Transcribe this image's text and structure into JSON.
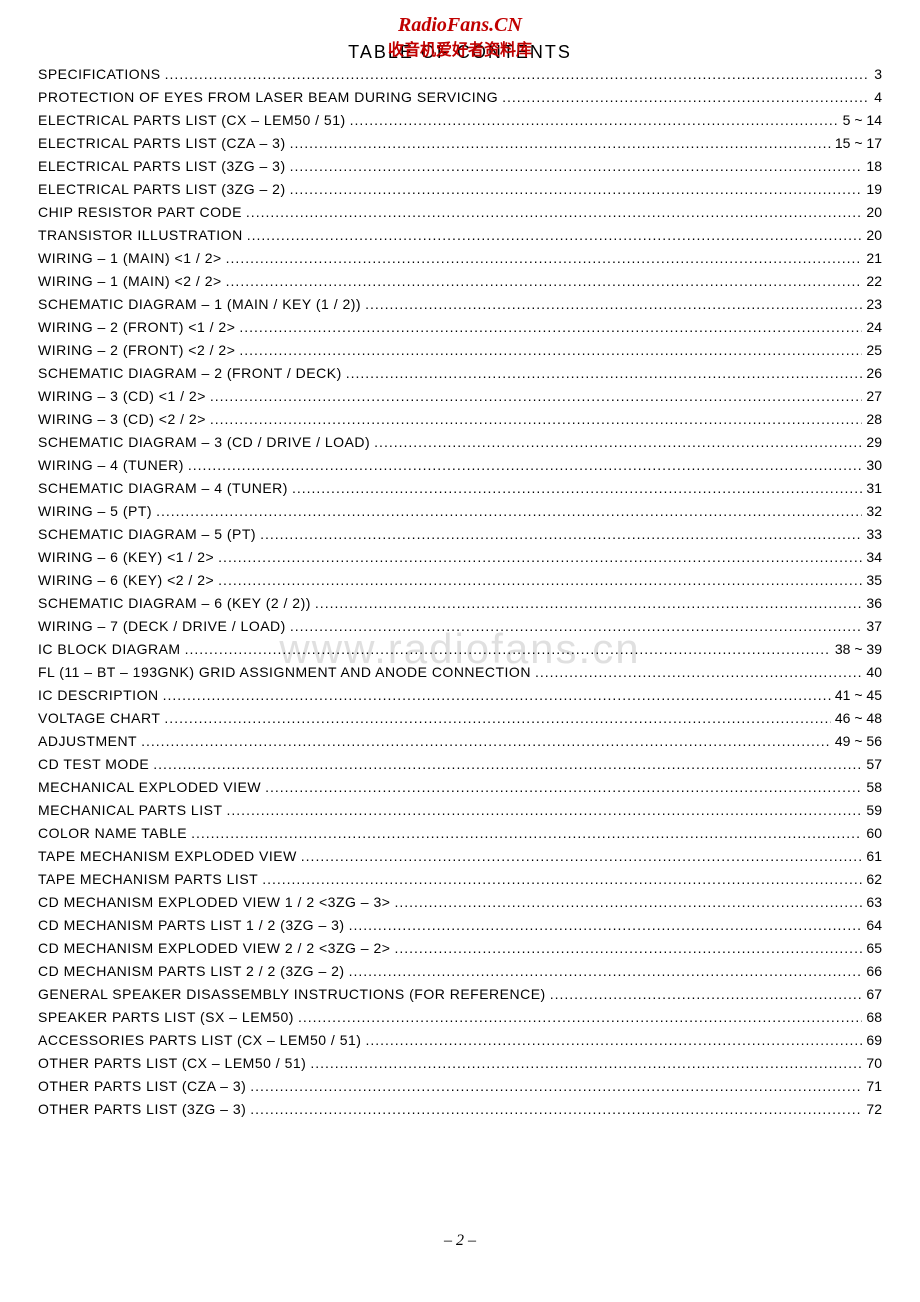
{
  "watermark_top": "RadioFans.CN",
  "watermark_sub": "收音机爱好者资料库",
  "title": "TABLE  OF  CONTENTS",
  "watermark_mid": "www.radiofans.cn",
  "page_number": "– 2 –",
  "toc": [
    {
      "title": "SPECIFICATIONS",
      "page": "3"
    },
    {
      "title": "PROTECTION  OF  EYES  FROM  LASER  BEAM  DURING  SERVICING",
      "page": "4"
    },
    {
      "title": "ELECTRICAL  PARTS  LIST  (CX – LEM50 / 51)",
      "page": "5 ~ 14"
    },
    {
      "title": "ELECTRICAL  PARTS  LIST  (CZA – 3)",
      "page": "15 ~ 17"
    },
    {
      "title": "ELECTRICAL  PARTS  LIST  (3ZG – 3)",
      "page": "18"
    },
    {
      "title": "ELECTRICAL  PARTS  LIST  (3ZG – 2)",
      "page": "19"
    },
    {
      "title": "CHIP  RESISTOR  PART  CODE",
      "page": "20"
    },
    {
      "title": "TRANSISTOR  ILLUSTRATION",
      "page": "20"
    },
    {
      "title": "WIRING – 1  (MAIN)  <1 / 2>",
      "page": "21"
    },
    {
      "title": "WIRING – 1  (MAIN)  <2 / 2>",
      "page": "22"
    },
    {
      "title": "SCHEMATIC  DIAGRAM – 1  (MAIN / KEY  (1 / 2))",
      "page": "23"
    },
    {
      "title": "WIRING – 2  (FRONT)  <1 / 2>",
      "page": "24"
    },
    {
      "title": "WIRING – 2  (FRONT)  <2 / 2>",
      "page": "25"
    },
    {
      "title": "SCHEMATIC  DIAGRAM – 2  (FRONT / DECK)",
      "page": "26"
    },
    {
      "title": "WIRING – 3  (CD)  <1 / 2>",
      "page": "27"
    },
    {
      "title": "WIRING – 3  (CD)  <2 / 2>",
      "page": "28"
    },
    {
      "title": "SCHEMATIC  DIAGRAM – 3  (CD / DRIVE / LOAD)",
      "page": "29"
    },
    {
      "title": "WIRING – 4  (TUNER)",
      "page": "30"
    },
    {
      "title": "SCHEMATIC  DIAGRAM – 4  (TUNER)",
      "page": "31"
    },
    {
      "title": "WIRING – 5  (PT)",
      "page": "32"
    },
    {
      "title": "SCHEMATIC  DIAGRAM – 5  (PT)",
      "page": "33"
    },
    {
      "title": "WIRING – 6  (KEY)  <1 / 2>",
      "page": "34"
    },
    {
      "title": "WIRING – 6  (KEY)  <2 / 2>",
      "page": "35"
    },
    {
      "title": "SCHEMATIC  DIAGRAM – 6  (KEY  (2 / 2))",
      "page": "36"
    },
    {
      "title": "WIRING – 7  (DECK / DRIVE / LOAD)",
      "page": "37"
    },
    {
      "title": "IC  BLOCK  DIAGRAM",
      "page": "38 ~ 39"
    },
    {
      "title": "FL (11 – BT – 193GNK)  GRID  ASSIGNMENT  AND  ANODE  CONNECTION",
      "page": "40"
    },
    {
      "title": "IC  DESCRIPTION",
      "page": "41 ~ 45"
    },
    {
      "title": "VOLTAGE  CHART",
      "page": "46 ~ 48"
    },
    {
      "title": "ADJUSTMENT",
      "page": "49 ~ 56"
    },
    {
      "title": "CD  TEST  MODE",
      "page": "57"
    },
    {
      "title": "MECHANICAL  EXPLODED  VIEW",
      "page": "58"
    },
    {
      "title": "MECHANICAL  PARTS  LIST",
      "page": "59"
    },
    {
      "title": "COLOR  NAME  TABLE",
      "page": "60"
    },
    {
      "title": "TAPE  MECHANISM  EXPLODED  VIEW",
      "page": "61"
    },
    {
      "title": "TAPE  MECHANISM  PARTS  LIST",
      "page": "62"
    },
    {
      "title": "CD  MECHANISM  EXPLODED  VIEW  1 / 2  <3ZG – 3>",
      "page": "63"
    },
    {
      "title": "CD  MECHANISM  PARTS  LIST  1 / 2  (3ZG – 3)",
      "page": "64"
    },
    {
      "title": "CD  MECHANISM  EXPLODED  VIEW  2 / 2  <3ZG – 2>",
      "page": "65"
    },
    {
      "title": "CD  MECHANISM  PARTS  LIST  2 / 2  (3ZG – 2)",
      "page": "66"
    },
    {
      "title": "GENERAL  SPEAKER  DISASSEMBLY  INSTRUCTIONS  (FOR  REFERENCE)",
      "page": "67"
    },
    {
      "title": "SPEAKER  PARTS  LIST  (SX – LEM50)",
      "page": "68"
    },
    {
      "title": "ACCESSORIES  PARTS  LIST  (CX – LEM50 / 51)",
      "page": "69"
    },
    {
      "title": "OTHER  PARTS  LIST  (CX – LEM50 / 51)",
      "page": "70"
    },
    {
      "title": "OTHER  PARTS  LIST  (CZA – 3)",
      "page": "71"
    },
    {
      "title": "OTHER  PARTS  LIST  (3ZG – 3)",
      "page": "72"
    }
  ]
}
